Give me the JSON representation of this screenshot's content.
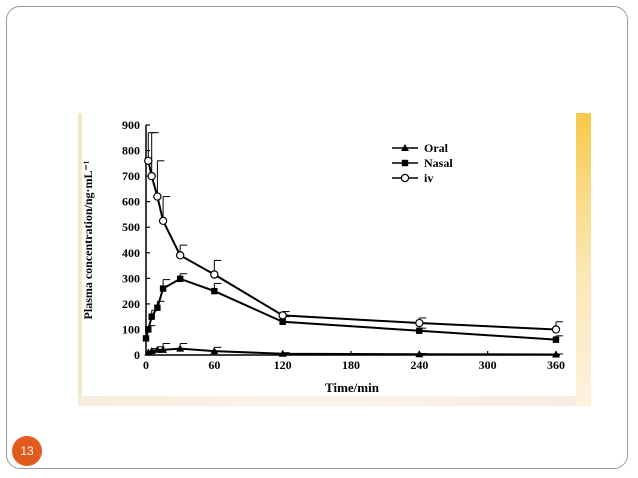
{
  "slide": {
    "page_number": "13",
    "badge_color": "#e25a1c",
    "accent_color": "#f7c948"
  },
  "chart_data": {
    "type": "line",
    "title": "",
    "xlabel": "Time/min",
    "ylabel": "Plasma concentration/ng·mL⁻¹",
    "xlim": [
      0,
      360
    ],
    "ylim": [
      0,
      900
    ],
    "x_ticks": [
      0,
      60,
      120,
      180,
      240,
      300,
      360
    ],
    "y_ticks": [
      0,
      100,
      200,
      300,
      400,
      500,
      600,
      700,
      800,
      900
    ],
    "grid": false,
    "legend_position": "top-right",
    "series": [
      {
        "name": "Oral",
        "marker": "filled-triangle",
        "x": [
          2,
          5,
          10,
          15,
          30,
          60,
          120,
          240,
          360
        ],
        "y": [
          10,
          15,
          20,
          20,
          25,
          15,
          5,
          3,
          2
        ],
        "error": [
          5,
          10,
          12,
          25,
          20,
          15,
          4,
          3,
          2
        ]
      },
      {
        "name": "Nasal",
        "marker": "filled-square",
        "x": [
          0,
          2,
          5,
          10,
          15,
          30,
          60,
          120,
          240,
          360
        ],
        "y": [
          65,
          100,
          150,
          185,
          260,
          298,
          250,
          130,
          95,
          60
        ],
        "error": [
          0,
          15,
          25,
          25,
          35,
          20,
          30,
          20,
          10,
          15
        ]
      },
      {
        "name": "iv",
        "marker": "open-circle",
        "x": [
          2,
          5,
          10,
          15,
          30,
          60,
          120,
          240,
          360
        ],
        "y": [
          760,
          700,
          620,
          525,
          390,
          315,
          155,
          125,
          100
        ],
        "error": [
          110,
          170,
          140,
          95,
          40,
          55,
          15,
          20,
          30
        ]
      }
    ]
  }
}
